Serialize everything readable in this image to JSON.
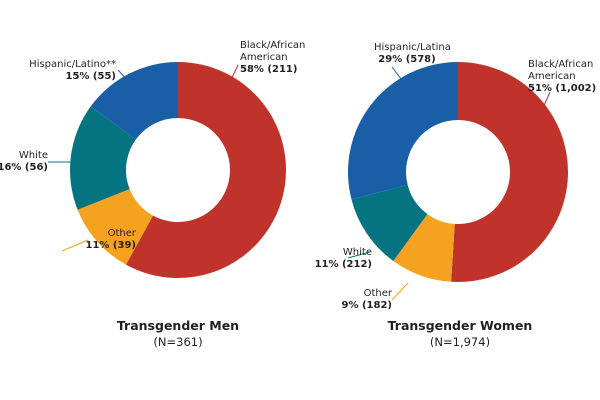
{
  "chart_data": [
    {
      "type": "pie",
      "variant": "donut",
      "title": "Transgender Men",
      "subtitle": "(N=361)",
      "slices": [
        {
          "label": "Black/African American",
          "percent": 58,
          "count": 211,
          "value_text": "58% (211)",
          "color": "#c0332a"
        },
        {
          "label": "Other",
          "percent": 11,
          "count": 39,
          "value_text": "11% (39)",
          "color": "#f4a21f"
        },
        {
          "label": "White",
          "percent": 16,
          "count": 56,
          "value_text": "16% (56)",
          "color": "#037480"
        },
        {
          "label": "Hispanic/Latino**",
          "percent": 15,
          "count": 55,
          "value_text": "15% (55)",
          "color": "#1a5ea8"
        }
      ]
    },
    {
      "type": "pie",
      "variant": "donut",
      "title": "Transgender Women",
      "subtitle": "(N=1,974)",
      "slices": [
        {
          "label": "Black/African American",
          "percent": 51,
          "count": 1002,
          "value_text": "51% (1,002)",
          "color": "#c0332a"
        },
        {
          "label": "Other",
          "percent": 9,
          "count": 182,
          "value_text": "9% (182)",
          "color": "#f4a21f"
        },
        {
          "label": "White",
          "percent": 11,
          "count": 212,
          "value_text": "11% (212)",
          "color": "#037480"
        },
        {
          "label": "Hispanic/Latina",
          "percent": 29,
          "count": 578,
          "value_text": "29% (578)",
          "color": "#1a5ea8"
        }
      ]
    }
  ]
}
